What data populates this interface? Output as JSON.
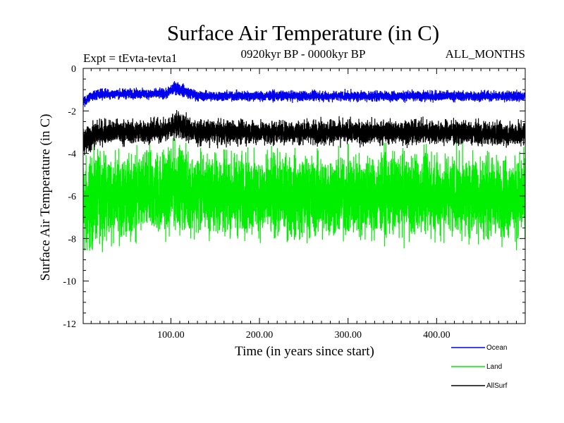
{
  "chart_data": {
    "type": "line",
    "title": "Surface Air Temperature (in C)",
    "subtitle_left": "Expt = tEvta-tevta1",
    "subtitle_center": "0920kyr BP - 0000kyr BP",
    "subtitle_right": "ALL_MONTHS",
    "xlabel": "Time (in years since start)",
    "ylabel": "Surface Air Temperature (in C)",
    "xlim": [
      1,
      500
    ],
    "ylim": [
      -12,
      0
    ],
    "x_ticks": [
      {
        "value": 100,
        "label": "100.00"
      },
      {
        "value": 200,
        "label": "200.00"
      },
      {
        "value": 300,
        "label": "300.00"
      },
      {
        "value": 400,
        "label": "400.00"
      }
    ],
    "y_ticks": [
      {
        "value": 0,
        "label": "0"
      },
      {
        "value": -2,
        "label": "-2"
      },
      {
        "value": -4,
        "label": "-4"
      },
      {
        "value": -6,
        "label": "-6"
      },
      {
        "value": -8,
        "label": "-8"
      },
      {
        "value": -10,
        "label": "-10"
      },
      {
        "value": -12,
        "label": "-12"
      }
    ],
    "series": [
      {
        "name": "Land",
        "color": "#00ee00",
        "points_per_year": 12,
        "envelope": {
          "years": [
            1,
            5,
            10,
            20,
            50,
            95,
            105,
            130,
            200,
            300,
            400,
            500
          ],
          "mean": [
            -6.5,
            -6.6,
            -6.3,
            -6.0,
            -6.0,
            -5.8,
            -5.5,
            -5.9,
            -6.0,
            -6.0,
            -5.9,
            -6.1
          ],
          "half_range": [
            3.2,
            3.4,
            3.0,
            2.8,
            2.7,
            2.8,
            2.7,
            2.6,
            2.7,
            2.8,
            2.7,
            2.7
          ]
        }
      },
      {
        "name": "AllSurf",
        "color": "#000000",
        "points_per_year": 12,
        "envelope": {
          "years": [
            1,
            5,
            10,
            20,
            50,
            95,
            105,
            130,
            200,
            300,
            400,
            500
          ],
          "mean": [
            -3.4,
            -3.4,
            -3.2,
            -3.0,
            -3.0,
            -2.9,
            -2.6,
            -3.0,
            -3.0,
            -3.0,
            -3.0,
            -3.1
          ],
          "half_range": [
            1.0,
            1.0,
            0.9,
            0.8,
            0.8,
            0.8,
            0.9,
            0.8,
            0.8,
            0.8,
            0.8,
            0.8
          ]
        }
      },
      {
        "name": "Ocean",
        "color": "#0000ee",
        "points_per_year": 12,
        "envelope": {
          "years": [
            1,
            5,
            10,
            20,
            50,
            95,
            105,
            130,
            200,
            300,
            400,
            500
          ],
          "mean": [
            -1.5,
            -1.5,
            -1.3,
            -1.2,
            -1.2,
            -1.2,
            -0.9,
            -1.3,
            -1.3,
            -1.3,
            -1.3,
            -1.3
          ],
          "half_range": [
            0.35,
            0.35,
            0.35,
            0.35,
            0.35,
            0.35,
            0.45,
            0.35,
            0.35,
            0.35,
            0.35,
            0.35
          ]
        }
      }
    ],
    "legend": {
      "placement": "bottom-right",
      "entries": [
        {
          "name": "Ocean",
          "color": "#0000ee"
        },
        {
          "name": "Land",
          "color": "#00ee00"
        },
        {
          "name": "AllSurf",
          "color": "#000000"
        }
      ]
    }
  }
}
